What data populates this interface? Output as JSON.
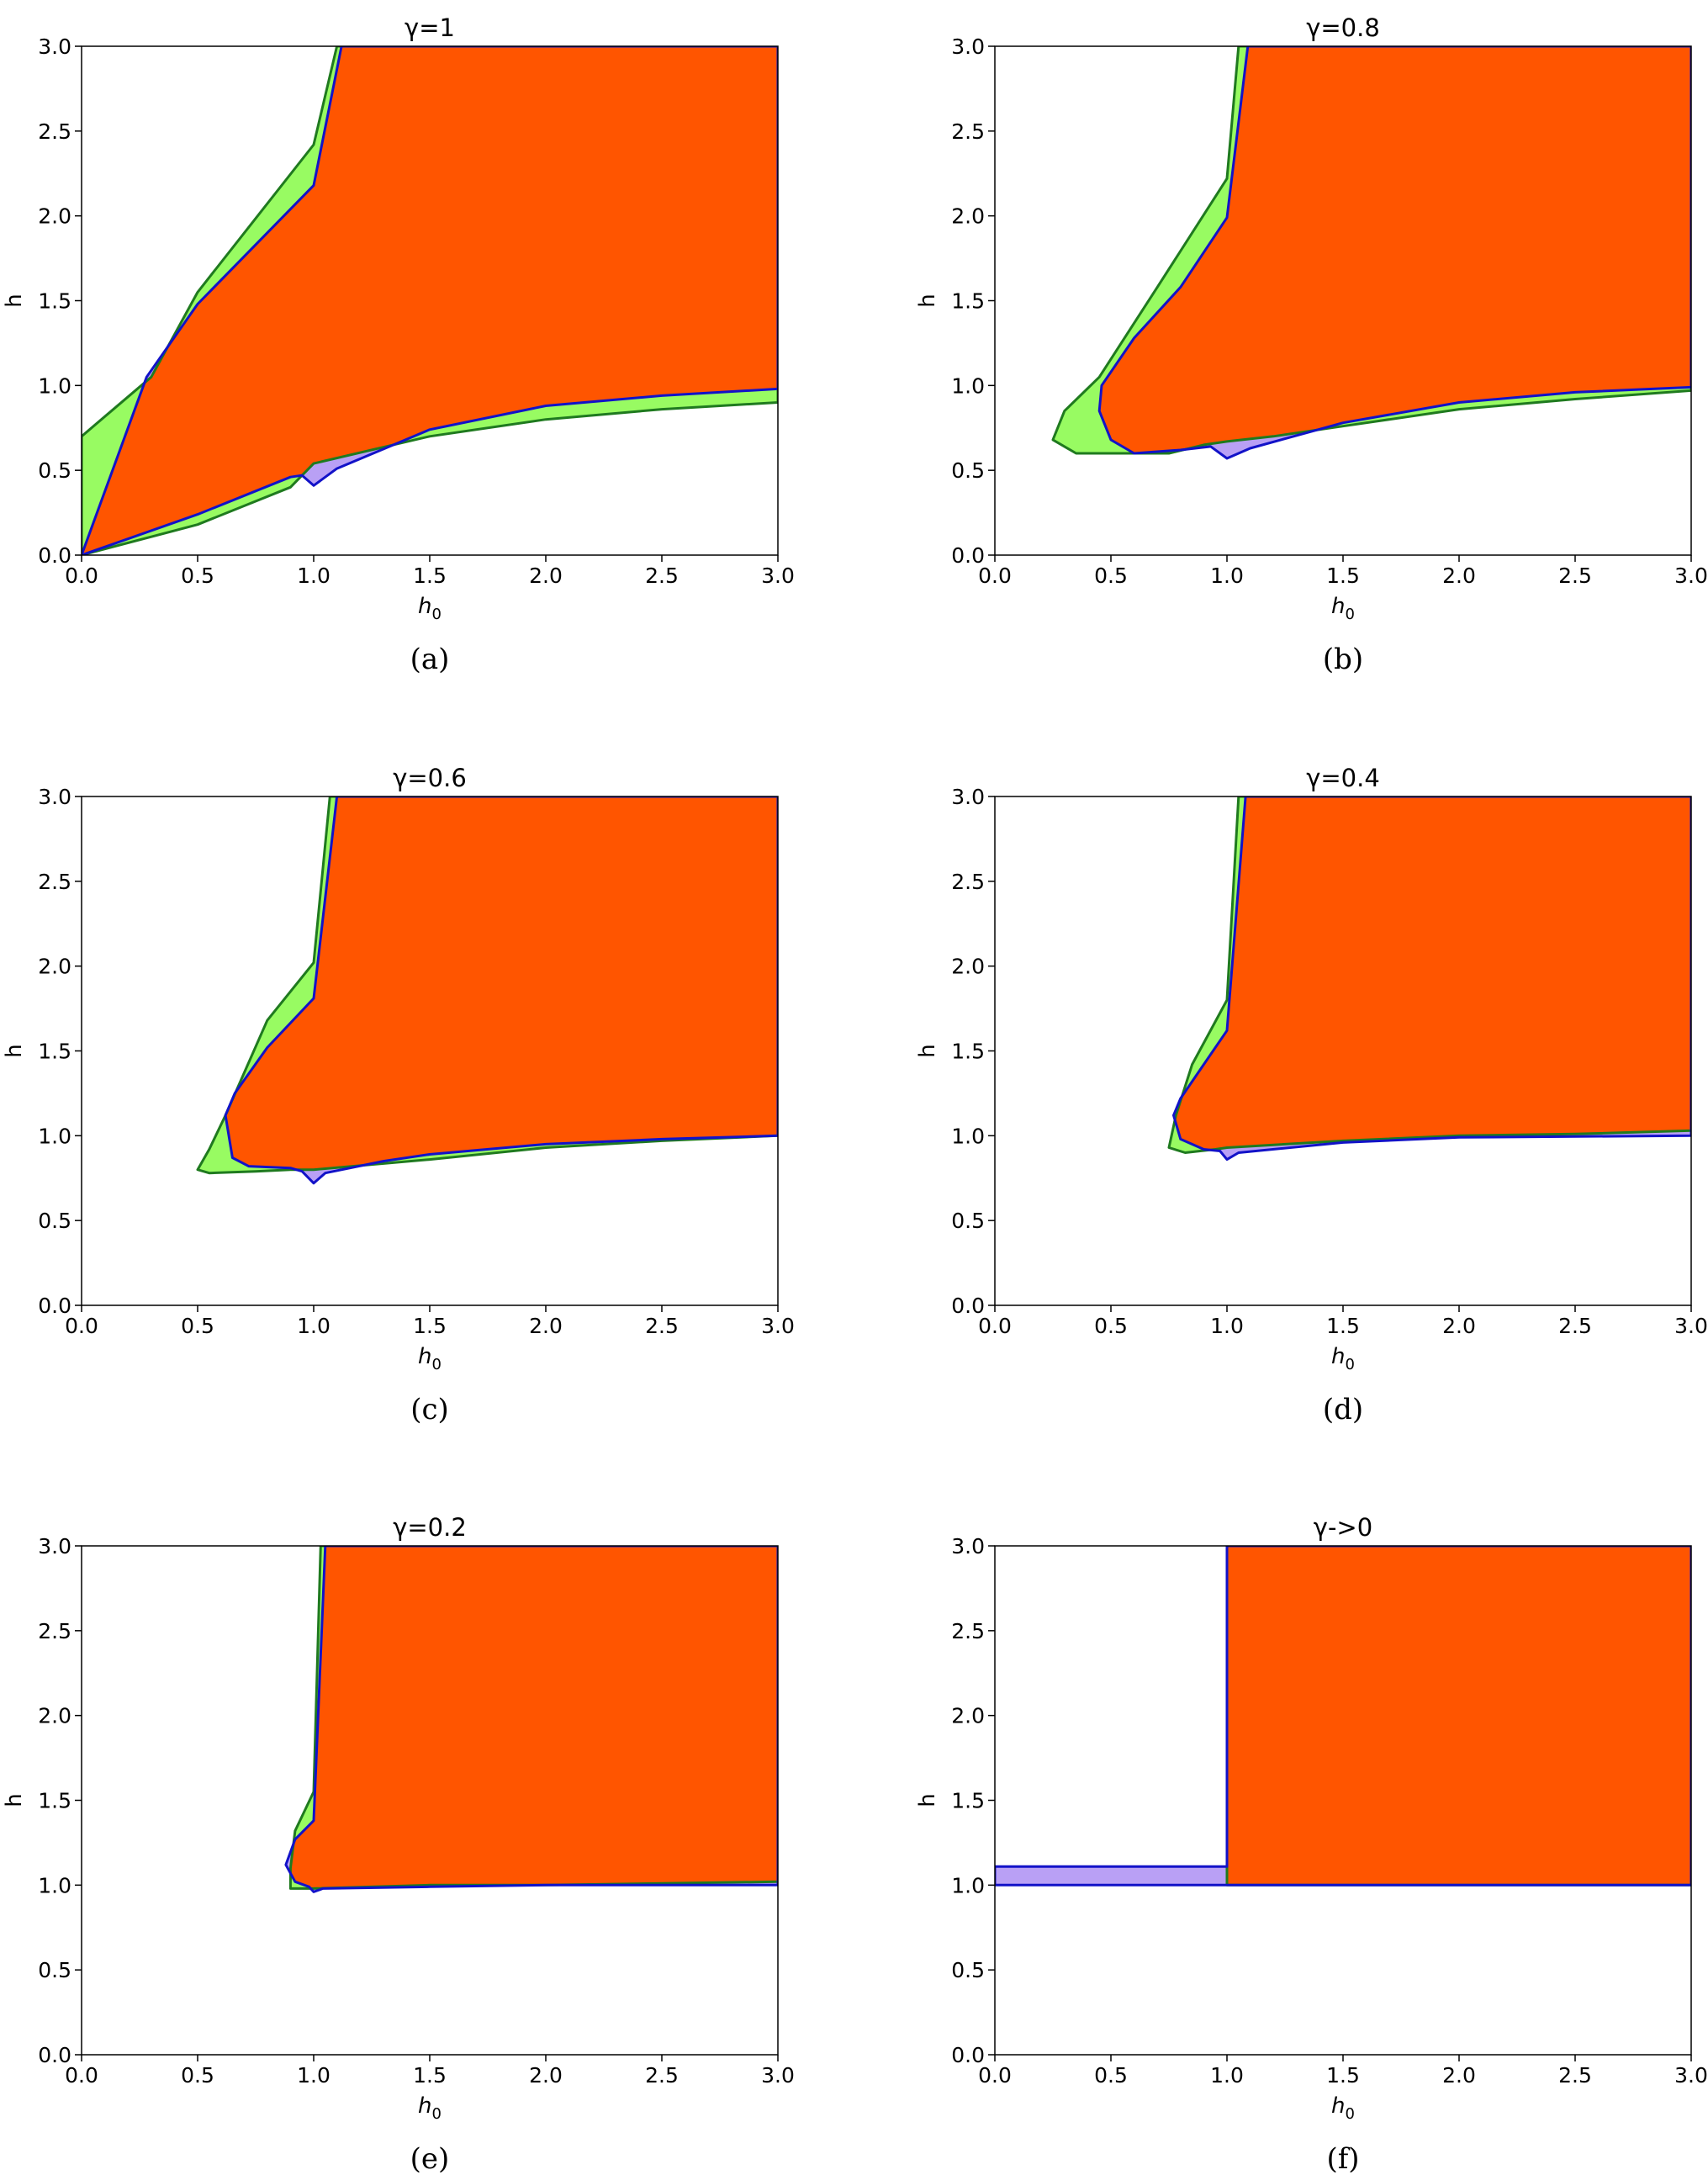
{
  "colors": {
    "both": "#ff5500",
    "green_region": "#98fb62",
    "green_edge": "#1f7a1f",
    "purple_region": "#b9a0f5",
    "blue_edge": "#1212c8"
  },
  "chart_data": [
    {
      "type": "area",
      "title": "γ=1",
      "caption": "(a)",
      "xlabel": "h0",
      "ylabel": "h",
      "xlim": [
        0,
        3
      ],
      "ylim": [
        0,
        3
      ],
      "xticks": [
        "0.0",
        "0.5",
        "1.0",
        "1.5",
        "2.0",
        "2.5",
        "3.0"
      ],
      "yticks": [
        "0.0",
        "0.5",
        "1.0",
        "1.5",
        "2.0",
        "2.5",
        "3.0"
      ],
      "green_boundary": [
        [
          0,
          0
        ],
        [
          0.5,
          0.18
        ],
        [
          0.9,
          0.4
        ],
        [
          1.0,
          0.54
        ],
        [
          1.5,
          0.7
        ],
        [
          2.0,
          0.8
        ],
        [
          2.5,
          0.86
        ],
        [
          3.0,
          0.9
        ],
        [
          3.0,
          3.0
        ],
        [
          1.1,
          3.0
        ],
        [
          1.0,
          2.42
        ],
        [
          0.5,
          1.55
        ],
        [
          0.3,
          1.05
        ],
        [
          0,
          0.7
        ]
      ],
      "blue_boundary": [
        [
          0,
          0
        ],
        [
          0.5,
          0.24
        ],
        [
          0.9,
          0.46
        ],
        [
          0.95,
          0.47
        ],
        [
          1.0,
          0.41
        ],
        [
          1.1,
          0.51
        ],
        [
          1.5,
          0.74
        ],
        [
          2.0,
          0.88
        ],
        [
          2.5,
          0.94
        ],
        [
          3.0,
          0.98
        ],
        [
          3.0,
          3.0
        ],
        [
          1.12,
          3.0
        ],
        [
          1.0,
          2.18
        ],
        [
          0.5,
          1.48
        ],
        [
          0.28,
          1.05
        ]
      ]
    },
    {
      "type": "area",
      "title": "γ=0.8",
      "caption": "(b)",
      "xlabel": "h0",
      "ylabel": "h",
      "xlim": [
        0,
        3
      ],
      "ylim": [
        0,
        3
      ],
      "xticks": [
        "0.0",
        "0.5",
        "1.0",
        "1.5",
        "2.0",
        "2.5",
        "3.0"
      ],
      "yticks": [
        "0.0",
        "0.5",
        "1.0",
        "1.5",
        "2.0",
        "2.5",
        "3.0"
      ],
      "green_boundary": [
        [
          0.25,
          0.68
        ],
        [
          0.35,
          0.6
        ],
        [
          0.55,
          0.6
        ],
        [
          0.75,
          0.6
        ],
        [
          0.9,
          0.65
        ],
        [
          1.0,
          0.67
        ],
        [
          1.2,
          0.7
        ],
        [
          1.5,
          0.76
        ],
        [
          2.0,
          0.86
        ],
        [
          2.5,
          0.92
        ],
        [
          3.0,
          0.97
        ],
        [
          3.0,
          3.0
        ],
        [
          1.05,
          3.0
        ],
        [
          1.0,
          2.22
        ],
        [
          0.7,
          1.58
        ],
        [
          0.45,
          1.05
        ],
        [
          0.3,
          0.85
        ]
      ],
      "blue_boundary": [
        [
          0.45,
          0.85
        ],
        [
          0.5,
          0.68
        ],
        [
          0.6,
          0.6
        ],
        [
          0.8,
          0.62
        ],
        [
          0.93,
          0.64
        ],
        [
          1.0,
          0.57
        ],
        [
          1.1,
          0.63
        ],
        [
          1.5,
          0.78
        ],
        [
          2.0,
          0.9
        ],
        [
          2.5,
          0.96
        ],
        [
          3.0,
          0.99
        ],
        [
          3.0,
          3.0
        ],
        [
          1.09,
          3.0
        ],
        [
          1.0,
          1.99
        ],
        [
          0.8,
          1.58
        ],
        [
          0.6,
          1.28
        ],
        [
          0.46,
          1.0
        ]
      ]
    },
    {
      "type": "area",
      "title": "γ=0.6",
      "caption": "(c)",
      "xlabel": "h0",
      "ylabel": "h",
      "xlim": [
        0,
        3
      ],
      "ylim": [
        0,
        3
      ],
      "xticks": [
        "0.0",
        "0.5",
        "1.0",
        "1.5",
        "2.0",
        "2.5",
        "3.0"
      ],
      "yticks": [
        "0.0",
        "0.5",
        "1.0",
        "1.5",
        "2.0",
        "2.5",
        "3.0"
      ],
      "green_boundary": [
        [
          0.5,
          0.8
        ],
        [
          0.55,
          0.78
        ],
        [
          0.75,
          0.79
        ],
        [
          0.9,
          0.8
        ],
        [
          1.0,
          0.8
        ],
        [
          1.5,
          0.86
        ],
        [
          2.0,
          0.93
        ],
        [
          2.5,
          0.97
        ],
        [
          3.0,
          1.0
        ],
        [
          3.0,
          3.0
        ],
        [
          1.07,
          3.0
        ],
        [
          1.0,
          2.02
        ],
        [
          0.8,
          1.68
        ],
        [
          0.62,
          1.12
        ],
        [
          0.55,
          0.92
        ]
      ],
      "blue_boundary": [
        [
          0.62,
          1.12
        ],
        [
          0.65,
          0.87
        ],
        [
          0.72,
          0.82
        ],
        [
          0.9,
          0.81
        ],
        [
          0.95,
          0.79
        ],
        [
          1.0,
          0.72
        ],
        [
          1.05,
          0.78
        ],
        [
          1.3,
          0.85
        ],
        [
          1.5,
          0.89
        ],
        [
          2.0,
          0.95
        ],
        [
          2.5,
          0.98
        ],
        [
          3.0,
          1.0
        ],
        [
          3.0,
          3.0
        ],
        [
          1.1,
          3.0
        ],
        [
          1.0,
          1.81
        ],
        [
          0.8,
          1.52
        ],
        [
          0.66,
          1.25
        ]
      ]
    },
    {
      "type": "area",
      "title": "γ=0.4",
      "caption": "(d)",
      "xlabel": "h0",
      "ylabel": "h",
      "xlim": [
        0,
        3
      ],
      "ylim": [
        0,
        3
      ],
      "xticks": [
        "0.0",
        "0.5",
        "1.0",
        "1.5",
        "2.0",
        "2.5",
        "3.0"
      ],
      "yticks": [
        "0.0",
        "0.5",
        "1.0",
        "1.5",
        "2.0",
        "2.5",
        "3.0"
      ],
      "green_boundary": [
        [
          0.75,
          0.93
        ],
        [
          0.82,
          0.9
        ],
        [
          0.95,
          0.92
        ],
        [
          1.0,
          0.93
        ],
        [
          1.5,
          0.97
        ],
        [
          2.0,
          1.0
        ],
        [
          2.5,
          1.01
        ],
        [
          3.0,
          1.03
        ],
        [
          3.0,
          3.0
        ],
        [
          1.05,
          3.0
        ],
        [
          1.0,
          1.8
        ],
        [
          0.85,
          1.42
        ],
        [
          0.78,
          1.12
        ]
      ],
      "blue_boundary": [
        [
          0.77,
          1.12
        ],
        [
          0.8,
          0.98
        ],
        [
          0.9,
          0.92
        ],
        [
          0.97,
          0.91
        ],
        [
          1.0,
          0.86
        ],
        [
          1.05,
          0.9
        ],
        [
          1.5,
          0.96
        ],
        [
          2.0,
          0.99
        ],
        [
          3.0,
          1.0
        ],
        [
          3.0,
          3.0
        ],
        [
          1.08,
          3.0
        ],
        [
          1.0,
          1.62
        ],
        [
          0.9,
          1.42
        ],
        [
          0.8,
          1.22
        ]
      ]
    },
    {
      "type": "area",
      "title": "γ=0.2",
      "caption": "(e)",
      "xlabel": "h0",
      "ylabel": "h",
      "xlim": [
        0,
        3
      ],
      "ylim": [
        0,
        3
      ],
      "xticks": [
        "0.0",
        "0.5",
        "1.0",
        "1.5",
        "2.0",
        "2.5",
        "3.0"
      ],
      "yticks": [
        "0.0",
        "0.5",
        "1.0",
        "1.5",
        "2.0",
        "2.5",
        "3.0"
      ],
      "green_boundary": [
        [
          0.9,
          0.98
        ],
        [
          1.0,
          0.98
        ],
        [
          1.5,
          1.0
        ],
        [
          2.0,
          1.0
        ],
        [
          3.0,
          1.02
        ],
        [
          3.0,
          3.0
        ],
        [
          1.03,
          3.0
        ],
        [
          1.0,
          1.55
        ],
        [
          0.92,
          1.32
        ],
        [
          0.9,
          1.1
        ]
      ],
      "blue_boundary": [
        [
          0.88,
          1.12
        ],
        [
          0.92,
          1.02
        ],
        [
          0.98,
          0.99
        ],
        [
          1.0,
          0.96
        ],
        [
          1.04,
          0.98
        ],
        [
          1.5,
          0.99
        ],
        [
          2.0,
          1.0
        ],
        [
          3.0,
          1.0
        ],
        [
          3.0,
          3.0
        ],
        [
          1.05,
          3.0
        ],
        [
          1.0,
          1.38
        ],
        [
          0.92,
          1.27
        ]
      ]
    },
    {
      "type": "area",
      "title": "γ->0",
      "caption": "(f)",
      "xlabel": "h0",
      "ylabel": "h",
      "xlim": [
        0,
        3
      ],
      "ylim": [
        0,
        3
      ],
      "xticks": [
        "0.0",
        "0.5",
        "1.0",
        "1.5",
        "2.0",
        "2.5",
        "3.0"
      ],
      "yticks": [
        "0.0",
        "0.5",
        "1.0",
        "1.5",
        "2.0",
        "2.5",
        "3.0"
      ],
      "green_boundary": [
        [
          1.0,
          1.0
        ],
        [
          3.0,
          1.0
        ],
        [
          3.0,
          3.0
        ],
        [
          1.0,
          3.0
        ]
      ],
      "blue_boundary": [
        [
          0,
          1.0
        ],
        [
          3.0,
          1.0
        ],
        [
          3.0,
          3.0
        ],
        [
          1.0,
          3.0
        ],
        [
          1.0,
          1.11
        ],
        [
          0,
          1.11
        ]
      ]
    }
  ]
}
